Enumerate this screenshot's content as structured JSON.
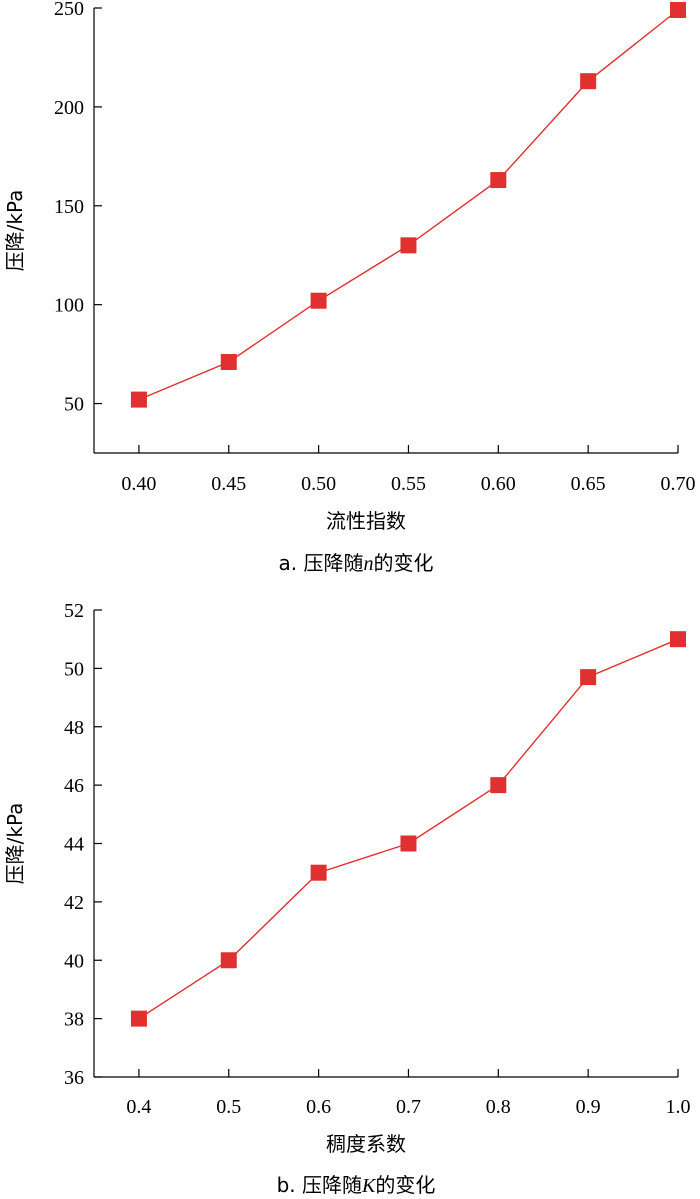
{
  "chart_data": [
    {
      "type": "line",
      "title": "",
      "caption": "a. 压降随n的变化",
      "caption_prefix": "a. 压降随",
      "caption_var": "n",
      "caption_suffix": "的变化",
      "xlabel": "流性指数",
      "ylabel": "压降/kPa",
      "x": [
        0.4,
        0.45,
        0.5,
        0.55,
        0.6,
        0.65,
        0.7
      ],
      "x_tick_labels": [
        "0.40",
        "0.45",
        "0.50",
        "0.55",
        "0.60",
        "0.65",
        "0.70"
      ],
      "series": [
        {
          "values": [
            52,
            71,
            102,
            130,
            163,
            213,
            249
          ]
        }
      ],
      "xlim": [
        0.375,
        0.7
      ],
      "ylim": [
        25,
        250
      ],
      "y_ticks": [
        50,
        100,
        150,
        200,
        250
      ],
      "y_tick_labels": [
        "50",
        "100",
        "150",
        "200",
        "250"
      ],
      "marker": "square",
      "color": "#e03030",
      "grid": false
    },
    {
      "type": "line",
      "title": "",
      "caption": "b. 压降随K的变化",
      "caption_prefix": "b. 压降随",
      "caption_var": "K",
      "caption_suffix": "的变化",
      "xlabel": "稠度系数",
      "ylabel": "压降/kPa",
      "x": [
        0.4,
        0.5,
        0.6,
        0.7,
        0.8,
        0.9,
        1.0
      ],
      "x_tick_labels": [
        "0.4",
        "0.5",
        "0.6",
        "0.7",
        "0.8",
        "0.9",
        "1.0"
      ],
      "series": [
        {
          "values": [
            38,
            40,
            43,
            44,
            46,
            49.7,
            51
          ]
        }
      ],
      "xlim": [
        0.35,
        1.0
      ],
      "ylim": [
        36,
        52
      ],
      "y_ticks": [
        36,
        38,
        40,
        42,
        44,
        46,
        48,
        50,
        52
      ],
      "y_tick_labels": [
        "36",
        "38",
        "40",
        "42",
        "44",
        "46",
        "48",
        "50",
        "52"
      ],
      "marker": "square",
      "color": "#e03030",
      "grid": false
    }
  ]
}
